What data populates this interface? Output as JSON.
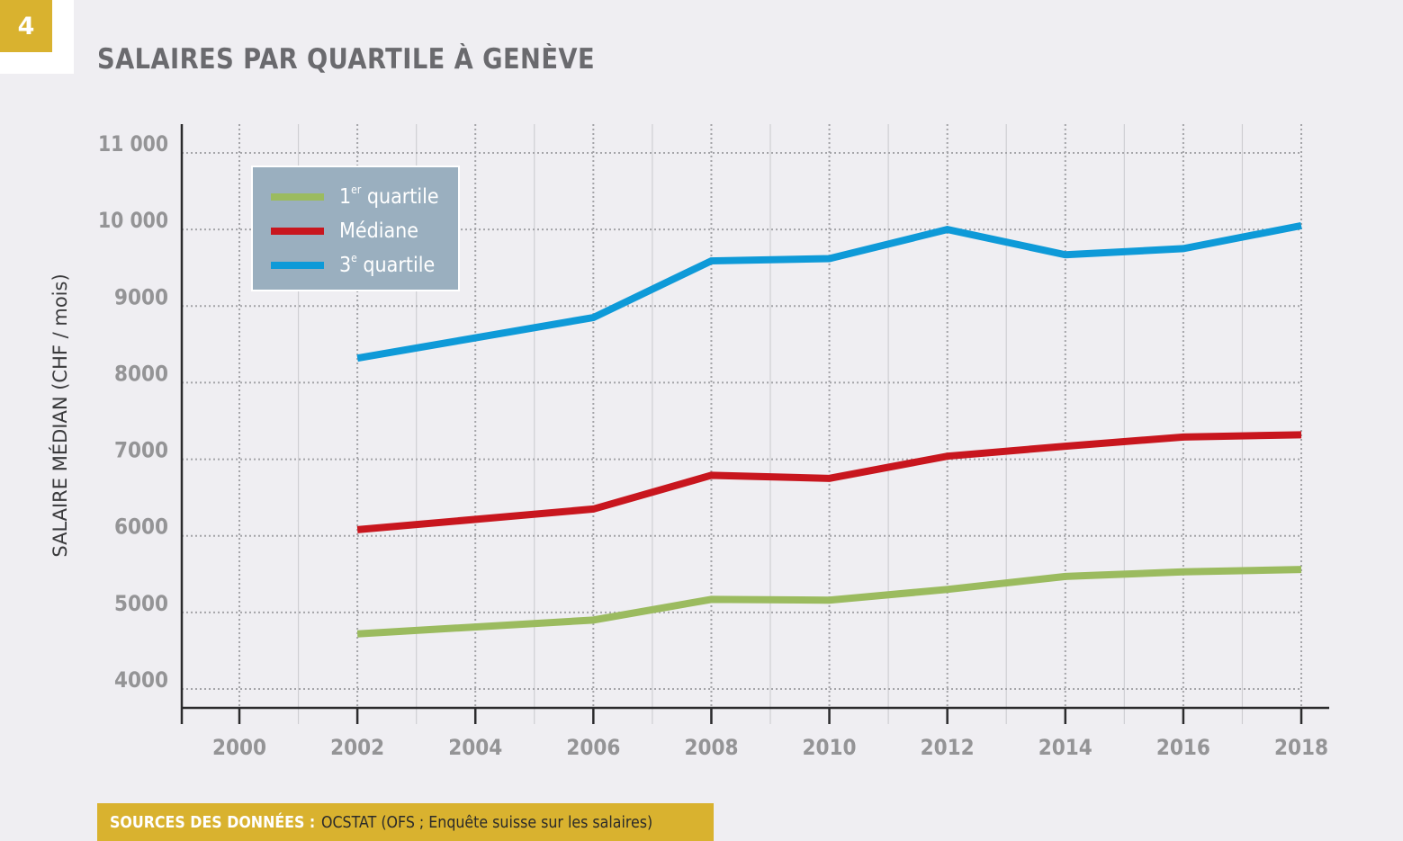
{
  "figure": {
    "number": "4",
    "title": "SALAIRES PAR QUARTILE À GENÈVE"
  },
  "legend": {
    "items": [
      {
        "label_main": "1",
        "label_sup": "er",
        "label_rest": " quartile",
        "color": "#9bbb5f"
      },
      {
        "label_main": "Médiane",
        "label_sup": "",
        "label_rest": "",
        "color": "#c8161e"
      },
      {
        "label_main": "3",
        "label_sup": "e",
        "label_rest": " quartile",
        "color": "#0e9ad8"
      }
    ]
  },
  "footer": {
    "label": "SOURCES DES DONNÉES :",
    "text": " OCSTAT (OFS ; Enquête suisse sur les salaires)"
  },
  "chart_data": {
    "type": "line",
    "title": "SALAIRES PAR QUARTILE À GENÈVE",
    "xlabel": "",
    "ylabel": "SALAIRE MÉDIAN (CHF / mois)",
    "xlim": [
      2000,
      2018
    ],
    "ylim": [
      4000,
      11000
    ],
    "x_ticks": [
      "2000",
      "2002",
      "2004",
      "2006",
      "2008",
      "2010",
      "2012",
      "2014",
      "2016",
      "2018"
    ],
    "y_ticks": [
      "4000",
      "5000",
      "6000",
      "7000",
      "8000",
      "9000",
      "10 000",
      "11 000"
    ],
    "y_tick_values": [
      4000,
      5000,
      6000,
      7000,
      8000,
      9000,
      10000,
      11000
    ],
    "grid": true,
    "legend_position": "top-left",
    "x": [
      2002,
      2006,
      2008,
      2010,
      2012,
      2014,
      2016,
      2018
    ],
    "series": [
      {
        "name": "1er quartile",
        "color": "#9bbb5f",
        "values": [
          4720,
          4900,
          5170,
          5160,
          5300,
          5470,
          5530,
          5560
        ]
      },
      {
        "name": "Médiane",
        "color": "#c8161e",
        "values": [
          6080,
          6350,
          6790,
          6750,
          7040,
          7170,
          7290,
          7320
        ]
      },
      {
        "name": "3e quartile",
        "color": "#0e9ad8",
        "values": [
          8320,
          8850,
          9590,
          9620,
          10000,
          9670,
          9750,
          10050
        ]
      }
    ]
  }
}
